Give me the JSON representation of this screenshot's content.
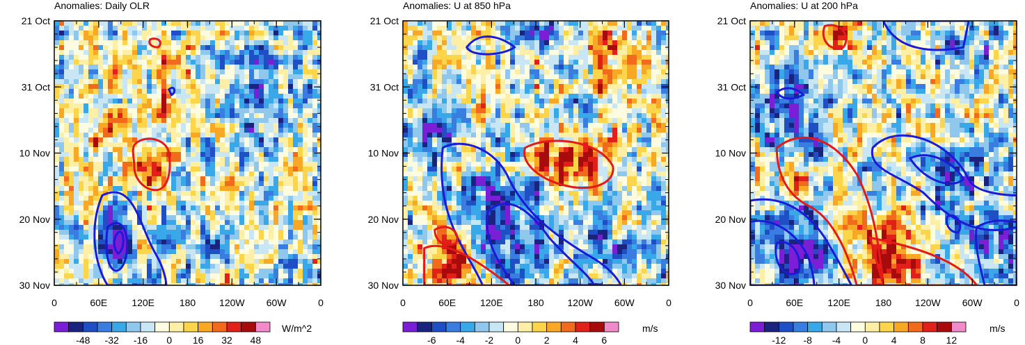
{
  "colors": {
    "neg_contour": "#1a1ad9",
    "pos_contour": "#e61919",
    "scale": [
      "#7a1fd6",
      "#1a237e",
      "#1f4fc4",
      "#3a7de0",
      "#39a8e8",
      "#8fc8ec",
      "#c9e6f5",
      "#fdfbe0",
      "#fdf0a6",
      "#fdd54a",
      "#f9a825",
      "#f26a1b",
      "#e02019",
      "#a80b0b",
      "#f08ac8"
    ]
  },
  "chart_data": [
    {
      "type": "heatmap",
      "title": "Anomalies: Daily OLR",
      "xlabel": "",
      "ylabel": "",
      "x_ticks": [
        "0",
        "60E",
        "120E",
        "180",
        "120W",
        "60W",
        "0"
      ],
      "y_ticks": [
        "21 Oct",
        "31 Oct",
        "10 Nov",
        "20 Nov",
        "30 Nov"
      ],
      "colorbar": {
        "labels": [
          "-48",
          "-32",
          "-16",
          "0",
          "16",
          "32",
          "48"
        ],
        "units": "W/m^2"
      },
      "grid": false
    },
    {
      "type": "heatmap",
      "title": "Anomalies: U at 850 hPa",
      "xlabel": "",
      "ylabel": "",
      "x_ticks": [
        "0",
        "60E",
        "120E",
        "180",
        "120W",
        "60W",
        "0"
      ],
      "y_ticks": [
        "21 Oct",
        "31 Oct",
        "10 Nov",
        "20 Nov",
        "30 Nov"
      ],
      "colorbar": {
        "labels": [
          "-6",
          "-4",
          "-2",
          "0",
          "2",
          "4",
          "6"
        ],
        "units": "m/s"
      },
      "grid": false
    },
    {
      "type": "heatmap",
      "title": "Anomalies: U at 200 hPa",
      "xlabel": "",
      "ylabel": "",
      "x_ticks": [
        "0",
        "60E",
        "120E",
        "180",
        "120W",
        "60W",
        "0"
      ],
      "y_ticks": [
        "21 Oct",
        "31 Oct",
        "10 Nov",
        "20 Nov",
        "30 Nov"
      ],
      "colorbar": {
        "labels": [
          "-12",
          "-8",
          "-4",
          "0",
          "4",
          "8",
          "12"
        ],
        "units": "m/s"
      },
      "grid": false
    }
  ]
}
